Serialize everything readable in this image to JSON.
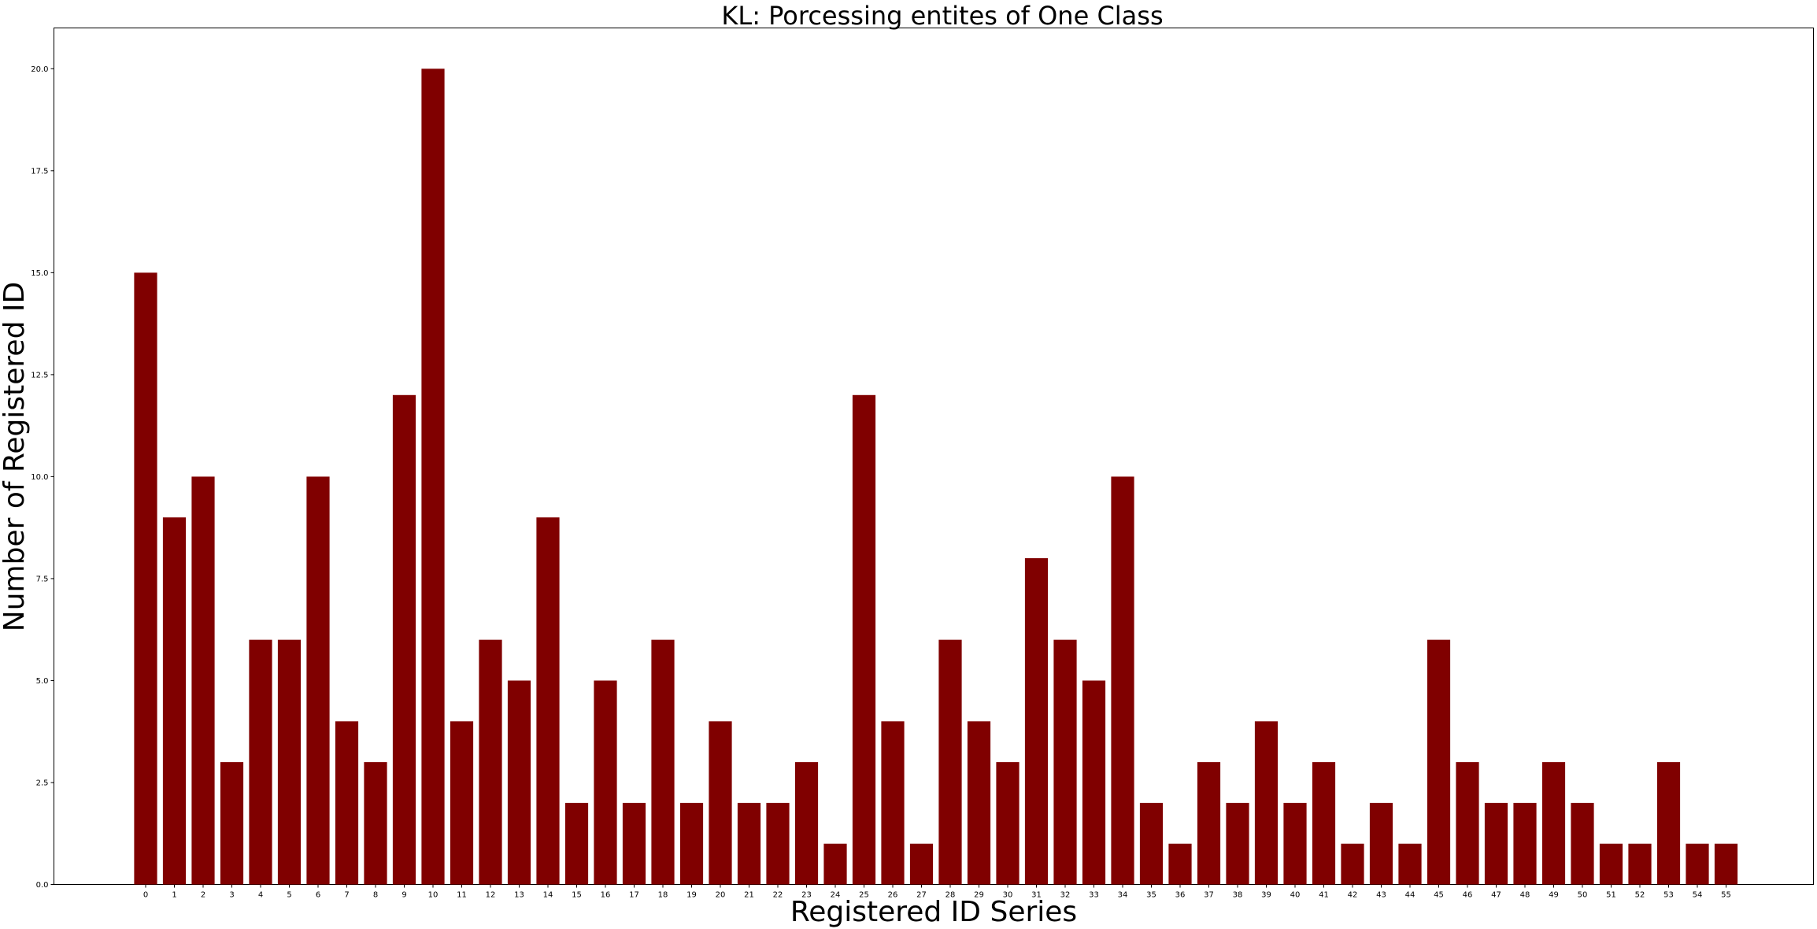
{
  "chart_data": {
    "type": "bar",
    "title": "KL: Porcessing entites of One Class",
    "xlabel": "Registered ID Series",
    "ylabel": "Number of Registered ID",
    "categories": [
      "0",
      "1",
      "2",
      "3",
      "4",
      "5",
      "6",
      "7",
      "8",
      "9",
      "10",
      "11",
      "12",
      "13",
      "14",
      "15",
      "16",
      "17",
      "18",
      "19",
      "20",
      "21",
      "22",
      "23",
      "24",
      "25",
      "26",
      "27",
      "28",
      "29",
      "30",
      "31",
      "32",
      "33",
      "34",
      "35",
      "36",
      "37",
      "38",
      "39",
      "40",
      "41",
      "42",
      "43",
      "44",
      "45",
      "46",
      "47",
      "48",
      "49",
      "50",
      "51",
      "52",
      "53",
      "54",
      "55"
    ],
    "values": [
      15,
      9,
      10,
      3,
      6,
      6,
      10,
      4,
      3,
      12,
      20,
      4,
      6,
      5,
      9,
      2,
      5,
      2,
      6,
      2,
      4,
      2,
      2,
      3,
      1,
      12,
      4,
      1,
      6,
      4,
      3,
      8,
      6,
      5,
      10,
      2,
      1,
      3,
      2,
      4,
      2,
      3,
      1,
      2,
      1,
      6,
      3,
      2,
      2,
      3,
      2,
      1,
      1,
      3,
      1,
      1
    ],
    "ylim": [
      0,
      21
    ],
    "yticks": [
      "0.0",
      "2.5",
      "5.0",
      "7.5",
      "10.0",
      "12.5",
      "15.0",
      "17.5",
      "20.0"
    ],
    "bar_color": "#800000",
    "grid": false,
    "legend": "none"
  }
}
